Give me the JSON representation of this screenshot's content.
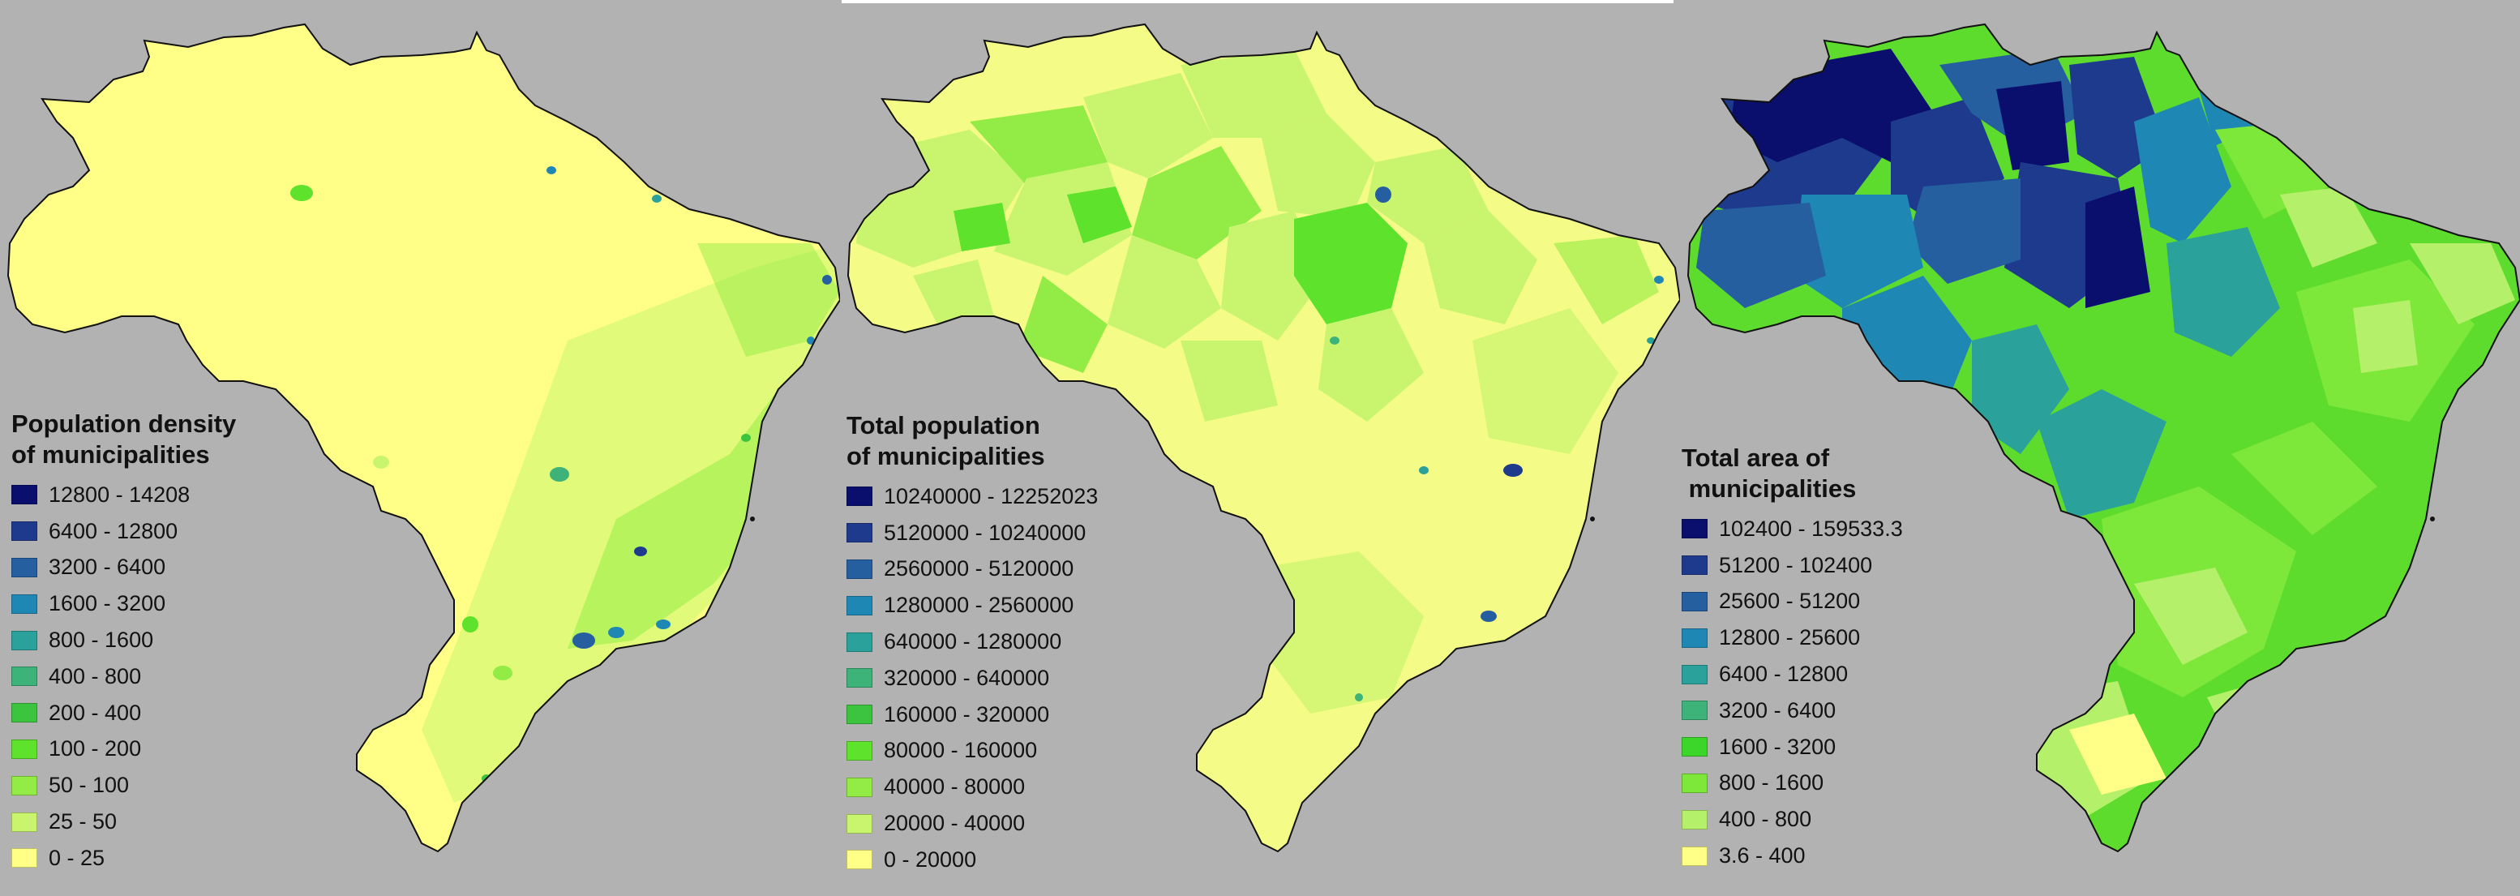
{
  "maps": [
    {
      "id": "density",
      "title_lines": [
        "Population density",
        "of municipalities"
      ],
      "base_color": "#ffff88",
      "legend": [
        {
          "label": "12800 - 14208",
          "color": "#0a0f6e"
        },
        {
          "label": "6400 - 12800",
          "color": "#1d3a8c"
        },
        {
          "label": "3200 - 6400",
          "color": "#255fa0"
        },
        {
          "label": "1600 - 3200",
          "color": "#1f87b4"
        },
        {
          "label": "800 - 1600",
          "color": "#2aa19a"
        },
        {
          "label": "400 - 800",
          "color": "#3db37a"
        },
        {
          "label": "200 - 400",
          "color": "#3cc43e"
        },
        {
          "label": "100 - 200",
          "color": "#5ee22c"
        },
        {
          "label": "50 - 100",
          "color": "#93ec45"
        },
        {
          "label": "25 - 50",
          "color": "#c9f56e"
        },
        {
          "label": "0 - 25",
          "color": "#ffff88"
        }
      ]
    },
    {
      "id": "population",
      "title_lines": [
        "Total population",
        "of municipalities"
      ],
      "base_color": "#f4fb86",
      "legend": [
        {
          "label": "10240000 - 12252023",
          "color": "#0a0f6e"
        },
        {
          "label": "5120000 - 10240000",
          "color": "#1d3a8c"
        },
        {
          "label": "2560000 - 5120000",
          "color": "#255fa0"
        },
        {
          "label": "1280000 - 2560000",
          "color": "#1f87b4"
        },
        {
          "label": "640000 - 1280000",
          "color": "#2aa19a"
        },
        {
          "label": "320000 - 640000",
          "color": "#3db37a"
        },
        {
          "label": "160000 - 320000",
          "color": "#3cc43e"
        },
        {
          "label": "80000 - 160000",
          "color": "#5ee22c"
        },
        {
          "label": "40000 - 80000",
          "color": "#93ec45"
        },
        {
          "label": "20000 - 40000",
          "color": "#c9f56e"
        },
        {
          "label": "0 - 20000",
          "color": "#ffff88"
        }
      ]
    },
    {
      "id": "area",
      "title_lines": [
        "Total area of",
        " municipalities"
      ],
      "base_color": "#5edc2e",
      "legend": [
        {
          "label": "102400 - 159533.3",
          "color": "#0a0f6e"
        },
        {
          "label": "51200 - 102400",
          "color": "#1d3a8c"
        },
        {
          "label": "25600 - 51200",
          "color": "#255fa0"
        },
        {
          "label": "12800 - 25600",
          "color": "#1f87b4"
        },
        {
          "label": "6400 - 12800",
          "color": "#2aa19a"
        },
        {
          "label": "3200 - 6400",
          "color": "#3db37a"
        },
        {
          "label": "1600 - 3200",
          "color": "#3cd52a"
        },
        {
          "label": "800 - 1600",
          "color": "#7ee83a"
        },
        {
          "label": "400 - 800",
          "color": "#b5f06a"
        },
        {
          "label": "3.6 - 400",
          "color": "#ffff88"
        }
      ]
    }
  ]
}
